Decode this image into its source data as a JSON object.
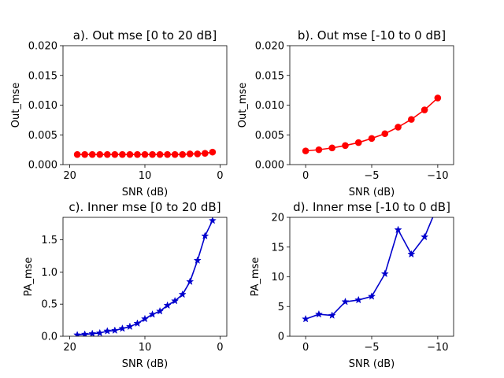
{
  "chart_data": [
    {
      "type": "line",
      "title": "a). Out mse [0 to 20 dB]",
      "xlabel": "SNR (dB)",
      "ylabel": "Out_mse",
      "xlim": [
        20.9,
        -0.9
      ],
      "ylim": [
        0,
        0.02
      ],
      "xticks": [
        20,
        10,
        0
      ],
      "xtick_labels": [
        "20",
        "10",
        "0"
      ],
      "yticks": [
        0,
        0.005,
        0.01,
        0.015,
        0.02
      ],
      "ytick_labels": [
        "0.000",
        "0.005",
        "0.010",
        "0.015",
        "0.020"
      ],
      "color": "#ff0000",
      "marker": "circle",
      "series": [
        {
          "x": [
            19,
            18,
            17,
            16,
            15,
            14,
            13,
            12,
            11,
            10,
            9,
            8,
            7,
            6,
            5,
            4,
            3,
            2,
            1
          ],
          "y": [
            0.0017,
            0.0017,
            0.0017,
            0.0017,
            0.0017,
            0.0017,
            0.0017,
            0.0017,
            0.0017,
            0.0017,
            0.0017,
            0.0017,
            0.0017,
            0.0017,
            0.0017,
            0.0018,
            0.0018,
            0.0019,
            0.0021
          ]
        }
      ]
    },
    {
      "type": "line",
      "title": "b). Out mse [-10 to 0 dB]",
      "xlabel": "SNR (dB)",
      "ylabel": "Out_mse",
      "xlim": [
        1.2,
        -11.2
      ],
      "ylim": [
        0,
        0.02
      ],
      "xticks": [
        0,
        -5,
        -10
      ],
      "xtick_labels": [
        "0",
        "−5",
        "−10"
      ],
      "yticks": [
        0,
        0.005,
        0.01,
        0.015,
        0.02
      ],
      "ytick_labels": [
        "0.000",
        "0.005",
        "0.010",
        "0.015",
        "0.020"
      ],
      "color": "#ff0000",
      "marker": "circle",
      "series": [
        {
          "x": [
            0,
            -1,
            -2,
            -3,
            -4,
            -5,
            -6,
            -7,
            -8,
            -9,
            -10
          ],
          "y": [
            0.0023,
            0.0025,
            0.0028,
            0.0032,
            0.0037,
            0.0044,
            0.0052,
            0.0063,
            0.0076,
            0.0092,
            0.0112
          ]
        }
      ]
    },
    {
      "type": "line",
      "title": "c). Inner mse [0 to 20 dB]",
      "xlabel": "SNR (dB)",
      "ylabel": "PA_mse",
      "xlim": [
        20.9,
        -0.9
      ],
      "ylim": [
        0,
        1.85
      ],
      "xticks": [
        20,
        10,
        0
      ],
      "xtick_labels": [
        "20",
        "10",
        "0"
      ],
      "yticks": [
        0,
        0.5,
        1.0,
        1.5
      ],
      "ytick_labels": [
        "0.0",
        "0.5",
        "1.0",
        "1.5"
      ],
      "color": "#0000cd",
      "marker": "star",
      "series": [
        {
          "x": [
            19,
            18,
            17,
            16,
            15,
            14,
            13,
            12,
            11,
            10,
            9,
            8,
            7,
            6,
            5,
            4,
            3,
            2,
            1
          ],
          "y": [
            0.02,
            0.03,
            0.04,
            0.05,
            0.08,
            0.09,
            0.12,
            0.15,
            0.2,
            0.27,
            0.34,
            0.39,
            0.48,
            0.55,
            0.65,
            0.85,
            1.18,
            1.56,
            1.8
          ]
        }
      ]
    },
    {
      "type": "line",
      "title": "d). Inner mse [-10 to 0 dB]",
      "xlabel": "SNR (dB)",
      "ylabel": "PA_mse",
      "xlim": [
        1.2,
        -11.2
      ],
      "ylim": [
        0,
        20
      ],
      "xticks": [
        0,
        -5,
        -10
      ],
      "xtick_labels": [
        "0",
        "−5",
        "−10"
      ],
      "yticks": [
        0,
        5,
        10,
        15,
        20
      ],
      "ytick_labels": [
        "0",
        "5",
        "10",
        "15",
        "20"
      ],
      "color": "#0000cd",
      "marker": "star",
      "series": [
        {
          "x": [
            0,
            -1,
            -2,
            -3,
            -4,
            -5,
            -6,
            -7,
            -8,
            -9,
            -10
          ],
          "y": [
            2.9,
            3.7,
            3.5,
            5.8,
            6.1,
            6.7,
            10.5,
            17.9,
            13.8,
            16.7,
            22.0
          ]
        }
      ]
    }
  ]
}
